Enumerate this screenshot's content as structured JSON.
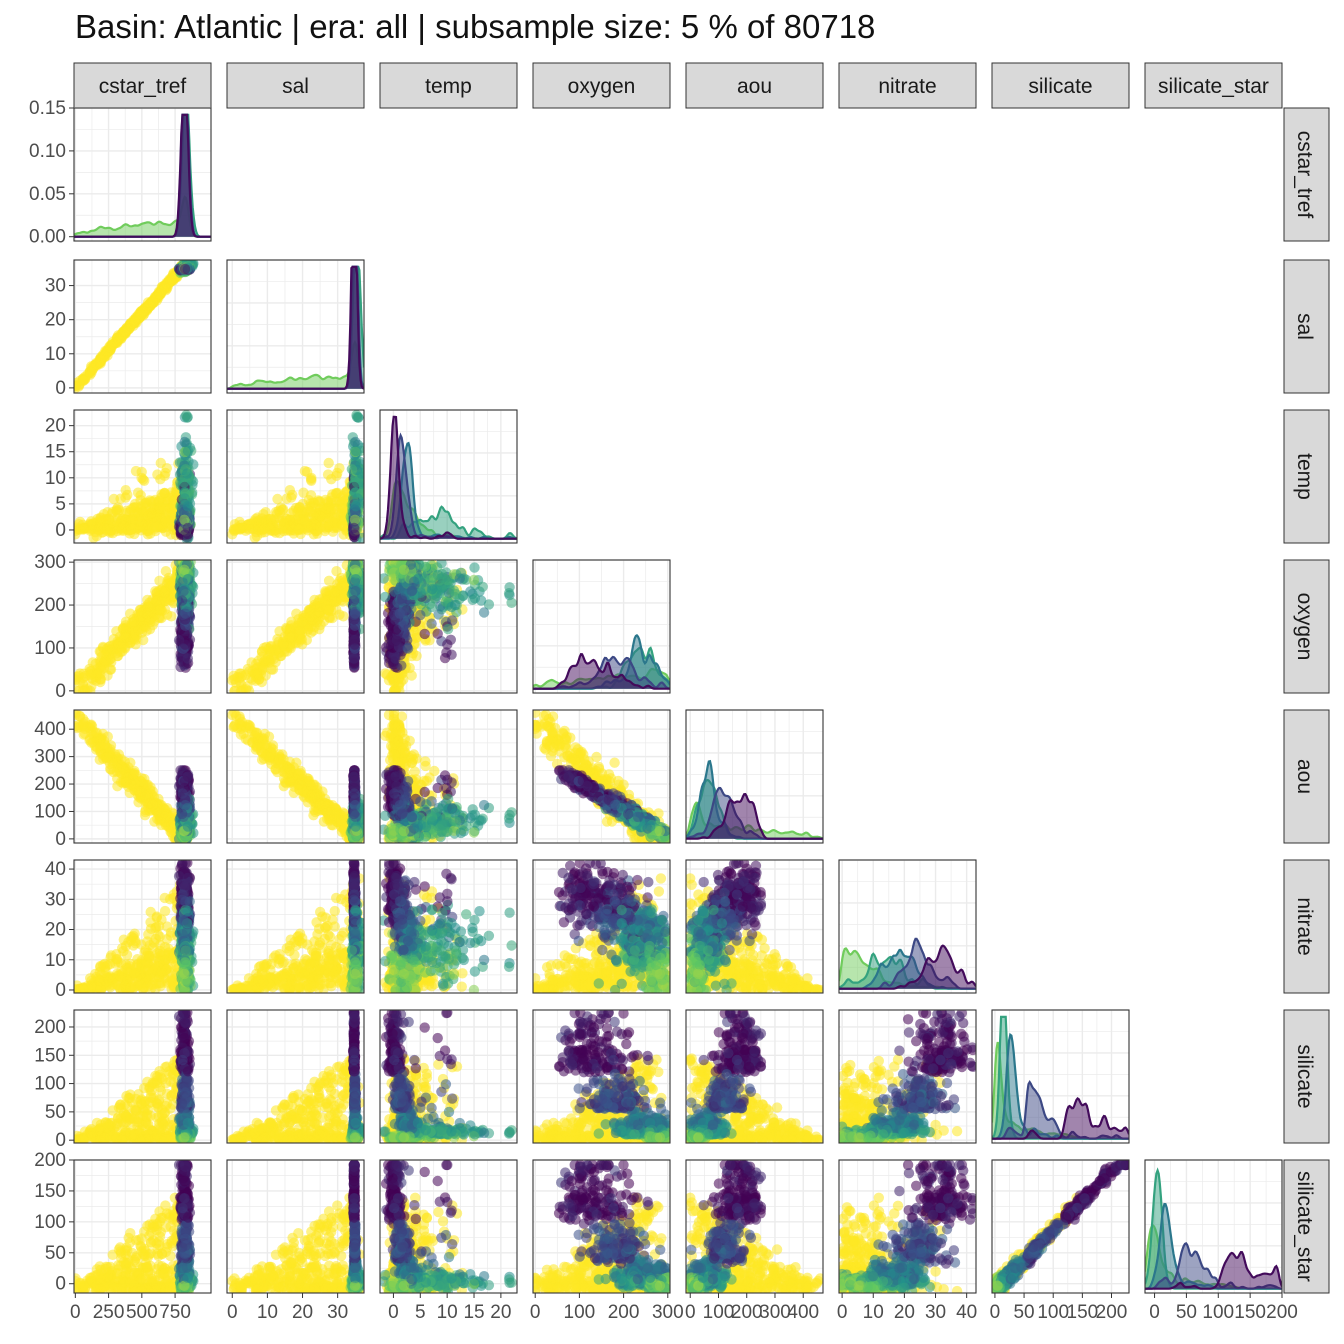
{
  "title": "Basin: Atlantic | era: all | subsample size: 5 % of 80718",
  "colors": {
    "background": "#ffffff",
    "grid": "#ebebeb",
    "strip_fill": "#d9d9d9",
    "panel_border": "#333333",
    "palette_viridis": [
      "#440154",
      "#3b528b",
      "#21908c",
      "#5dc863",
      "#fde725"
    ]
  },
  "chart_data": {
    "type": "scatter",
    "layout": "pairs-matrix-lower-triangle",
    "variables": [
      "cstar_tref",
      "sal",
      "temp",
      "oxygen",
      "aou",
      "nitrate",
      "silicate",
      "silicate_star"
    ],
    "diagonal": "density",
    "off_diagonal": "scatter",
    "color_scale": "viridis",
    "grid": true,
    "legend": "none",
    "axes": {
      "cstar_tref": {
        "range": [
          -10,
          1020
        ],
        "x_ticks": [
          "0",
          "250",
          "500",
          "750"
        ],
        "x_values": [
          0,
          250,
          500,
          750
        ]
      },
      "sal": {
        "range": [
          -1.5,
          37.5
        ],
        "x_ticks": [
          "0",
          "10",
          "20",
          "30"
        ],
        "x_values": [
          0,
          10,
          20,
          30
        ],
        "y_ticks": [
          "0",
          "10",
          "20",
          "30"
        ]
      },
      "temp": {
        "range": [
          -2.5,
          23
        ],
        "x_ticks": [
          "0",
          "5",
          "10",
          "15",
          "20"
        ],
        "x_values": [
          0,
          5,
          10,
          15,
          20
        ],
        "y_ticks": [
          "0",
          "5",
          "10",
          "15",
          "20"
        ]
      },
      "oxygen": {
        "range": [
          -5,
          305
        ],
        "x_ticks": [
          "0",
          "100",
          "200",
          "300"
        ],
        "x_values": [
          0,
          100,
          200,
          300
        ],
        "y_ticks": [
          "0",
          "100",
          "200",
          "300"
        ]
      },
      "aou": {
        "range": [
          -15,
          470
        ],
        "x_ticks": [
          "0",
          "100",
          "200",
          "300",
          "400"
        ],
        "x_values": [
          0,
          100,
          200,
          300,
          400
        ],
        "y_ticks": [
          "0",
          "100",
          "200",
          "300",
          "400"
        ]
      },
      "nitrate": {
        "range": [
          -1,
          43
        ],
        "x_ticks": [
          "0",
          "10",
          "20",
          "30",
          "40"
        ],
        "x_values": [
          0,
          10,
          20,
          30,
          40
        ],
        "y_ticks": [
          "0",
          "10",
          "20",
          "30",
          "40"
        ]
      },
      "silicate": {
        "range": [
          -5,
          230
        ],
        "x_ticks": [
          "0",
          "50",
          "100",
          "150",
          "200"
        ],
        "x_values": [
          0,
          50,
          100,
          150,
          200
        ],
        "y_ticks": [
          "0",
          "50",
          "100",
          "150",
          "200"
        ]
      },
      "silicate_star": {
        "range": [
          -15,
          200
        ],
        "x_ticks": [
          "0",
          "50",
          "100",
          "150",
          "200"
        ],
        "x_values": [
          0,
          50,
          100,
          150,
          200
        ],
        "y_ticks": [
          "0",
          "50",
          "100",
          "150",
          "200"
        ]
      }
    },
    "diag_y_axis": {
      "range": [
        -0.005,
        0.15
      ],
      "ticks": [
        "0.00",
        "0.05",
        "0.10",
        "0.15"
      ],
      "values": [
        0,
        0.05,
        0.1,
        0.15
      ]
    }
  }
}
